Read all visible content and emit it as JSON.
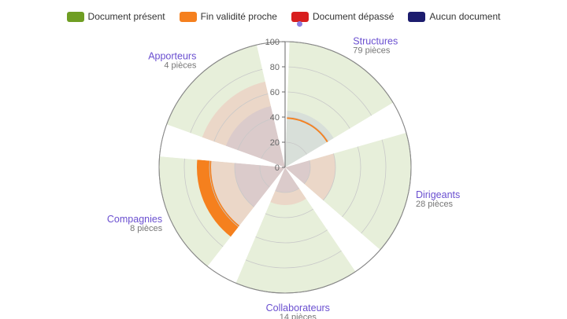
{
  "legend": [
    {
      "label": "Document présent",
      "color": "#6f9e23"
    },
    {
      "label": "Fin validité proche",
      "color": "#f5801e"
    },
    {
      "label": "Document dépassé",
      "color": "#d81e1e"
    },
    {
      "label": "Aucun document",
      "color": "#1c1c6e"
    }
  ],
  "chart_data": {
    "type": "polar-bar",
    "radial_axis": {
      "min": 0,
      "max": 100,
      "ticks": [
        0,
        20,
        40,
        60,
        80,
        100
      ]
    },
    "categories": [
      {
        "name": "Structures",
        "count": "79 pièces"
      },
      {
        "name": "Dirigeants",
        "count": "28 pièces"
      },
      {
        "name": "Collaborateurs",
        "count": "14 pièces"
      },
      {
        "name": "Compagnies",
        "count": "8 pièces"
      },
      {
        "name": "Apporteurs",
        "count": "4 pièces"
      }
    ],
    "series": [
      {
        "name": "Document présent",
        "color": "#6f9e23",
        "values": [
          100,
          100,
          100,
          100,
          100
        ]
      },
      {
        "name": "Fin validité proche",
        "color": "#f5801e",
        "values": [
          40,
          0,
          0,
          70,
          0
        ]
      },
      {
        "name": "Document dépassé",
        "color": "#d81e1e",
        "values": [
          0,
          40,
          30,
          60,
          70
        ]
      },
      {
        "name": "Aucun document",
        "color": "#1c1c6e",
        "values": [
          45,
          20,
          20,
          40,
          50
        ]
      }
    ]
  }
}
